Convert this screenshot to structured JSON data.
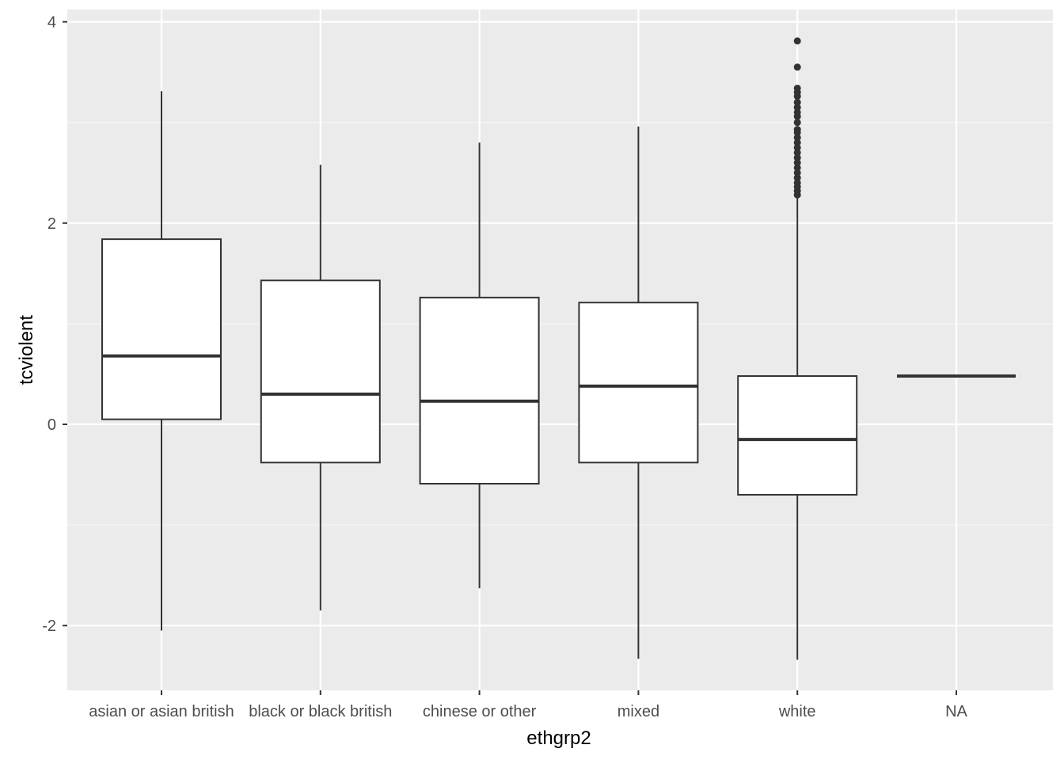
{
  "chart_data": {
    "type": "boxplot",
    "xlabel": "ethgrp2",
    "ylabel": "tcviolent",
    "ylim": [
      -2.65,
      4.1
    ],
    "yticks": [
      -2,
      0,
      2,
      4
    ],
    "ytick_labels": [
      "-2",
      "0",
      "2",
      "4"
    ],
    "grid": true,
    "categories": [
      "asian or asian british",
      "black or black british",
      "chinese or other",
      "mixed",
      "white",
      "NA"
    ],
    "boxes": [
      {
        "category": "asian or asian british",
        "whisker_low": -2.05,
        "q1": 0.05,
        "median": 0.68,
        "q3": 1.84,
        "whisker_high": 3.31,
        "outliers": []
      },
      {
        "category": "black or black british",
        "whisker_low": -1.85,
        "q1": -0.38,
        "median": 0.3,
        "q3": 1.43,
        "whisker_high": 2.58,
        "outliers": []
      },
      {
        "category": "chinese or other",
        "whisker_low": -1.63,
        "q1": -0.59,
        "median": 0.23,
        "q3": 1.26,
        "whisker_high": 2.8,
        "outliers": []
      },
      {
        "category": "mixed",
        "whisker_low": -2.33,
        "q1": -0.38,
        "median": 0.38,
        "q3": 1.21,
        "whisker_high": 2.96,
        "outliers": []
      },
      {
        "category": "white",
        "whisker_low": -2.34,
        "q1": -0.7,
        "median": -0.15,
        "q3": 0.48,
        "whisker_high": 2.27,
        "outliers": [
          2.28,
          2.32,
          2.36,
          2.4,
          2.45,
          2.5,
          2.55,
          2.6,
          2.65,
          2.7,
          2.75,
          2.8,
          2.85,
          2.9,
          2.93,
          3.0,
          3.06,
          3.1,
          3.15,
          3.2,
          3.26,
          3.3,
          3.34,
          3.55,
          3.81
        ]
      },
      {
        "category": "NA",
        "whisker_low": 0.48,
        "q1": 0.48,
        "median": 0.48,
        "q3": 0.48,
        "whisker_high": 0.48,
        "outliers": []
      }
    ]
  },
  "colors": {
    "panel_background": "#ebebeb",
    "grid_major": "#ffffff",
    "grid_minor": "#f5f5f5",
    "box_fill": "#ffffff",
    "box_line": "#333333",
    "tick_text": "#4d4d4d",
    "axis_title": "#000000"
  }
}
